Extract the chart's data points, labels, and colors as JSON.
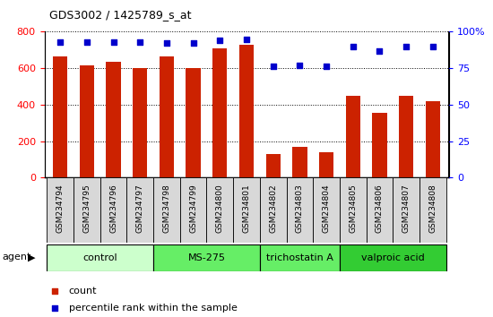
{
  "title": "GDS3002 / 1425789_s_at",
  "samples": [
    "GSM234794",
    "GSM234795",
    "GSM234796",
    "GSM234797",
    "GSM234798",
    "GSM234799",
    "GSM234800",
    "GSM234801",
    "GSM234802",
    "GSM234803",
    "GSM234804",
    "GSM234805",
    "GSM234806",
    "GSM234807",
    "GSM234808"
  ],
  "counts": [
    665,
    615,
    635,
    600,
    665,
    600,
    710,
    730,
    130,
    170,
    140,
    450,
    355,
    450,
    420
  ],
  "percentiles": [
    93,
    93,
    93,
    93,
    92,
    92,
    94,
    95,
    76,
    77,
    76,
    90,
    87,
    90,
    90
  ],
  "groups": [
    {
      "label": "control",
      "start": 0,
      "end": 4,
      "color": "#ccffcc"
    },
    {
      "label": "MS-275",
      "start": 4,
      "end": 8,
      "color": "#66ee66"
    },
    {
      "label": "trichostatin A",
      "start": 8,
      "end": 11,
      "color": "#66ee66"
    },
    {
      "label": "valproic acid",
      "start": 11,
      "end": 15,
      "color": "#33cc33"
    }
  ],
  "bar_color": "#cc2200",
  "dot_color": "#0000cc",
  "ylim_left": [
    0,
    800
  ],
  "ylim_right": [
    0,
    100
  ],
  "yticks_left": [
    0,
    200,
    400,
    600,
    800
  ],
  "yticks_right": [
    0,
    25,
    50,
    75,
    100
  ],
  "bar_width": 0.55,
  "background_color": "#ffffff",
  "tick_label_bg": "#d8d8d8"
}
